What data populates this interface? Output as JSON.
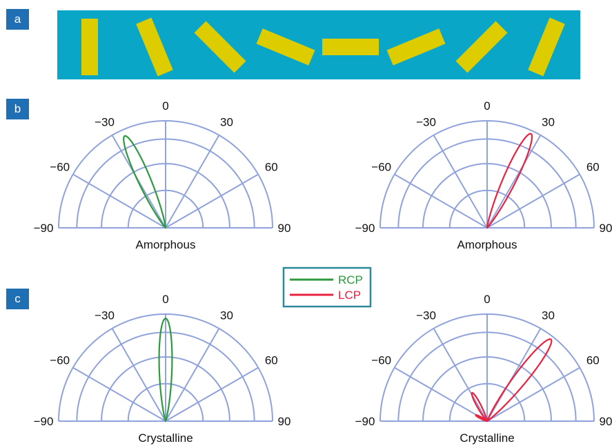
{
  "panels": {
    "a": {
      "label": "a",
      "background_color": "#0aa6c8",
      "bar_color": "#dccc00",
      "bar_angles_deg": [
        0,
        -22.5,
        -45,
        -67.5,
        -90,
        -112.5,
        -135,
        -157.5
      ]
    },
    "b": {
      "label": "b"
    },
    "c": {
      "label": "c"
    }
  },
  "legend": {
    "items": [
      {
        "label": "RCP",
        "color": "#2e9a3e"
      },
      {
        "label": "LCP",
        "color": "#e8223f"
      }
    ],
    "border_color": "#2a8a9a"
  },
  "grid_color": "#8fa2dc",
  "tick_labels": [
    "0",
    "−30",
    "30",
    "−60",
    "60",
    "−90",
    "90"
  ],
  "chart_data": [
    {
      "type": "polar",
      "title": "Amorphous",
      "series": "RCP",
      "color": "#2e9a3e",
      "angle_range_deg": [
        -90,
        90
      ],
      "tick_angles_deg": [
        -90,
        -60,
        -30,
        0,
        30,
        60,
        90
      ],
      "lobes": [
        {
          "angle_deg": -24,
          "magnitude": 0.94
        }
      ]
    },
    {
      "type": "polar",
      "title": "Amorphous",
      "series": "LCP",
      "color": "#e8223f",
      "angle_range_deg": [
        -90,
        90
      ],
      "tick_angles_deg": [
        -90,
        -60,
        -30,
        0,
        30,
        60,
        90
      ],
      "lobes": [
        {
          "angle_deg": 25,
          "magnitude": 0.97
        }
      ]
    },
    {
      "type": "polar",
      "title": "Crystalline",
      "series": "RCP",
      "color": "#2e9a3e",
      "angle_range_deg": [
        -90,
        90
      ],
      "tick_angles_deg": [
        -90,
        -60,
        -30,
        0,
        30,
        60,
        90
      ],
      "lobes": [
        {
          "angle_deg": 0,
          "magnitude": 0.96
        }
      ]
    },
    {
      "type": "polar",
      "title": "Crystalline",
      "series": "LCP",
      "color": "#e8223f",
      "angle_range_deg": [
        -90,
        90
      ],
      "tick_angles_deg": [
        -90,
        -60,
        -30,
        0,
        30,
        60,
        90
      ],
      "lobes": [
        {
          "angle_deg": 38,
          "magnitude": 0.97
        },
        {
          "angle_deg": -28,
          "magnitude": 0.3
        },
        {
          "angle_deg": -62,
          "magnitude": 0.12
        }
      ]
    }
  ]
}
